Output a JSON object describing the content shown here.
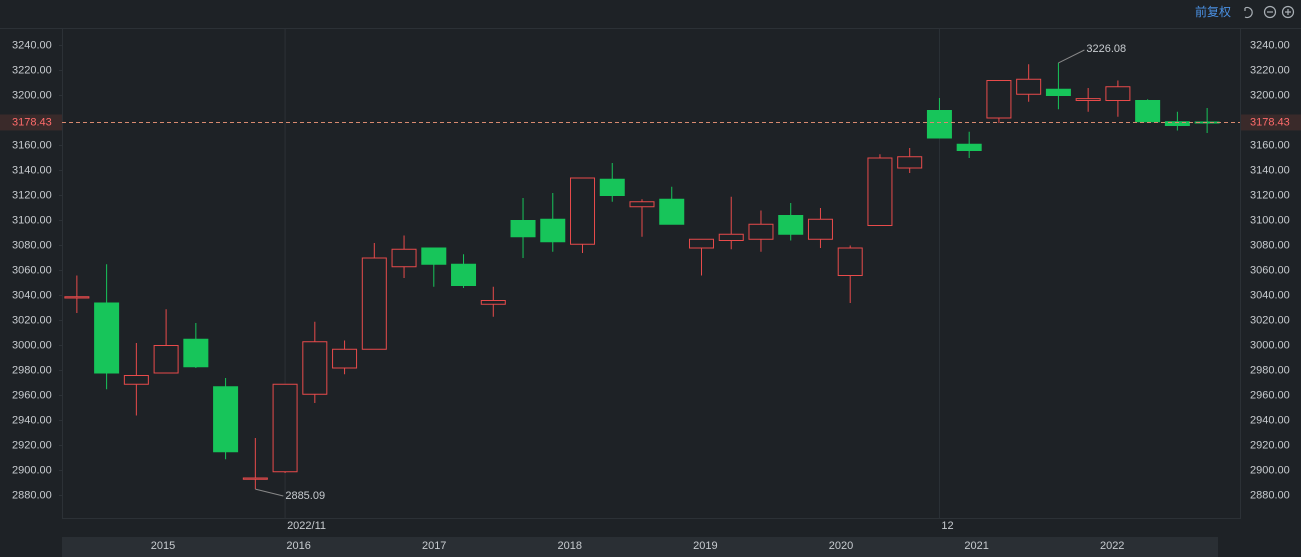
{
  "toolbar": {
    "adjust": "前复权"
  },
  "chart_data": {
    "type": "candlestick",
    "categories": [
      null,
      null,
      null,
      null,
      null,
      null,
      null,
      "2022/11",
      null,
      null,
      null,
      null,
      null,
      null,
      null,
      null,
      null,
      null,
      null,
      null,
      null,
      null,
      null,
      null,
      null,
      null,
      null,
      null,
      null,
      "12",
      null,
      null,
      null,
      null,
      null,
      null,
      null,
      null,
      null
    ],
    "open": [
      3038,
      3034,
      2969,
      2978,
      3005,
      2967,
      2893,
      2899,
      2961,
      2982,
      2997,
      3063,
      3078,
      3065,
      3033,
      3100,
      3101,
      3081,
      3133,
      3111,
      3117,
      3078,
      3084,
      3085,
      3104,
      3085,
      3056,
      3096,
      3142,
      3188,
      3161,
      3182,
      3201,
      3205,
      3196,
      3196,
      3196,
      3179,
      3178.8
    ],
    "high": [
      3056,
      3065,
      3002,
      3029,
      3018,
      2974,
      2926,
      2969,
      3019,
      3004,
      3082,
      3088,
      3078,
      3073,
      3047,
      3118,
      3122,
      3134,
      3146,
      3117,
      3127,
      3085,
      3119,
      3108,
      3114,
      3110,
      3080,
      3153,
      3158,
      3198,
      3171,
      3212,
      3225,
      3226.08,
      3206,
      3212,
      3197,
      3187,
      3190
    ],
    "low": [
      3026,
      2965,
      2944,
      2978,
      2982,
      2909,
      2885.09,
      2898,
      2954,
      2977,
      2997,
      3054,
      3047,
      3046,
      3023,
      3070,
      3075,
      3074,
      3115,
      3087,
      3097,
      3056,
      3077,
      3075,
      3084,
      3078,
      3034,
      3096,
      3138,
      3166,
      3150,
      3178,
      3195,
      3189,
      3187,
      3183,
      3178,
      3172,
      3170
    ],
    "close": [
      3039,
      2978,
      2976,
      3000,
      2983,
      2915,
      2894,
      2969,
      3003,
      2997,
      3070,
      3077,
      3065,
      3048,
      3036,
      3087,
      3083,
      3134,
      3120,
      3115,
      3097,
      3085,
      3089,
      3097,
      3089,
      3101,
      3078,
      3150,
      3151,
      3166,
      3156,
      3212,
      3213,
      3200,
      3197.5,
      3207,
      3179,
      3176,
      3178.43
    ],
    "up_color": "#e84b4b",
    "down_color": "#17c55a",
    "ylim": [
      2862,
      3254
    ],
    "yticks": [
      {
        "value": 2880,
        "label": "2880.00"
      },
      {
        "value": 2900,
        "label": "2900.00"
      },
      {
        "value": 2920,
        "label": "2920.00"
      },
      {
        "value": 2940,
        "label": "2940.00"
      },
      {
        "value": 2960,
        "label": "2960.00"
      },
      {
        "value": 2980,
        "label": "2980.00"
      },
      {
        "value": 3000,
        "label": "3000.00"
      },
      {
        "value": 3020,
        "label": "3020.00"
      },
      {
        "value": 3040,
        "label": "3040.00"
      },
      {
        "value": 3060,
        "label": "3060.00"
      },
      {
        "value": 3080,
        "label": "3080.00"
      },
      {
        "value": 3100,
        "label": "3100.00"
      },
      {
        "value": 3120,
        "label": "3120.00"
      },
      {
        "value": 3140,
        "label": "3140.00"
      },
      {
        "value": 3160,
        "label": "3160.00"
      },
      {
        "value": 3180,
        "label": "3180.00"
      },
      {
        "value": 3200,
        "label": "3200.00"
      },
      {
        "value": 3220,
        "label": "3220.00"
      },
      {
        "value": 3240,
        "label": "3240.00"
      }
    ],
    "max_label": "3226.08",
    "min_label": "2885.09",
    "last_price": {
      "value": 3178.43,
      "label": "3178.43"
    },
    "navigator_labels": [
      "2015",
      "2016",
      "2017",
      "2018",
      "2019",
      "2020",
      "2021",
      "2022"
    ]
  }
}
